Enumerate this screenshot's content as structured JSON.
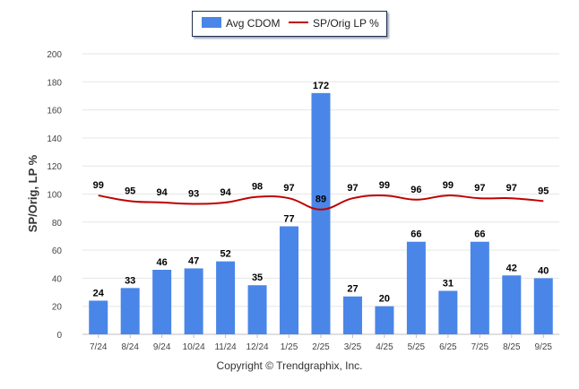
{
  "chart_data": {
    "type": "bar+line",
    "categories": [
      "7/24",
      "8/24",
      "9/24",
      "10/24",
      "11/24",
      "12/24",
      "1/25",
      "2/25",
      "3/25",
      "4/25",
      "5/25",
      "6/25",
      "7/25",
      "8/25",
      "9/25"
    ],
    "series": [
      {
        "name": "Avg CDOM",
        "type": "bar",
        "color": "#4a86e8",
        "values": [
          24,
          33,
          46,
          47,
          52,
          35,
          77,
          172,
          27,
          20,
          66,
          31,
          66,
          42,
          40
        ]
      },
      {
        "name": "SP/Orig LP %",
        "type": "line",
        "color": "#c00000",
        "values": [
          99,
          95,
          94,
          93,
          94,
          98,
          97,
          89,
          97,
          99,
          96,
          99,
          97,
          97,
          95
        ]
      }
    ],
    "ylabel": "SP/Orig, LP %",
    "ylim": [
      0,
      200
    ],
    "yticks": [
      0,
      20,
      40,
      60,
      80,
      100,
      120,
      140,
      160,
      180,
      200
    ],
    "grid": true,
    "legend_position": "top-center"
  },
  "legend": {
    "bar_label": "Avg CDOM",
    "line_label": "SP/Orig LP %"
  },
  "footer": {
    "copyright": "Copyright © Trendgraphix, Inc."
  }
}
